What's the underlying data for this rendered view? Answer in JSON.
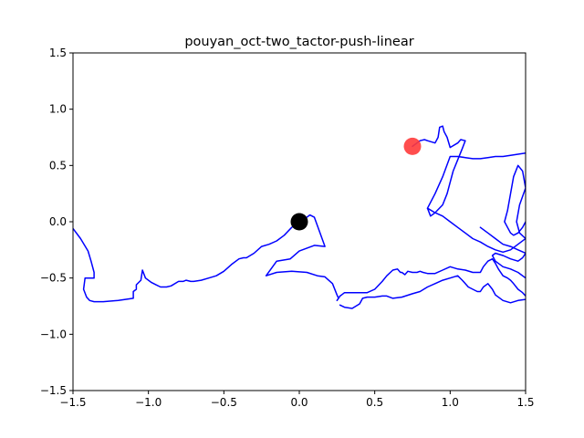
{
  "chart_data": {
    "type": "line",
    "title": "pouyan_oct-two_tactor-push-linear",
    "xlabel": "",
    "ylabel": "",
    "xlim": [
      -1.5,
      1.5
    ],
    "ylim": [
      -1.5,
      1.5
    ],
    "xticks": [
      -1.5,
      -1.0,
      -0.5,
      0.0,
      0.5,
      1.0,
      1.5
    ],
    "xtick_labels": [
      "−1.5",
      "−1.0",
      "−0.5",
      "0.0",
      "0.5",
      "1.0",
      "1.5"
    ],
    "yticks": [
      -1.5,
      -1.0,
      -0.5,
      0.0,
      0.5,
      1.0,
      1.5
    ],
    "ytick_labels": [
      "−1.5",
      "−1.0",
      "−0.5",
      "0.0",
      "0.5",
      "1.0",
      "1.5"
    ],
    "grid": false,
    "legend": "none",
    "trajectory_color": "#0000ff",
    "markers": [
      {
        "x": 0.0,
        "y": 0.0,
        "color": "#000000"
      },
      {
        "x": 0.75,
        "y": 0.67,
        "color": "#ff3b3b"
      }
    ],
    "series": [
      {
        "color": "#0000ff",
        "x": [
          -1.5,
          -1.45,
          -1.4,
          -1.38,
          -1.36,
          -1.36,
          -1.42,
          -1.43,
          -1.41,
          -1.39,
          -1.36,
          -1.3,
          -1.2,
          -1.1,
          -1.1,
          -1.08,
          -1.08,
          -1.05,
          -1.04,
          -1.02,
          -0.98,
          -0.95,
          -0.92,
          -0.88,
          -0.85,
          -0.8,
          -0.77,
          -0.75,
          -0.72,
          -0.7,
          -0.65,
          -0.6,
          -0.55,
          -0.5,
          -0.45,
          -0.4,
          -0.37,
          -0.35,
          -0.3,
          -0.25,
          -0.2,
          -0.15,
          -0.1,
          -0.05,
          0.0,
          0.04,
          0.07,
          0.1,
          0.17,
          0.1,
          0.0,
          -0.06,
          -0.15,
          -0.22,
          -0.15,
          -0.05,
          0.05,
          0.12,
          0.17,
          0.22,
          0.25,
          0.26,
          0.25,
          0.27,
          0.28,
          0.3,
          0.35,
          0.4,
          0.45,
          0.5,
          0.55,
          0.58,
          0.62,
          0.65,
          0.67,
          0.68,
          0.7,
          0.72,
          0.75,
          0.78,
          0.8,
          0.82,
          0.85,
          0.9,
          0.95,
          1.0,
          1.05,
          1.1,
          1.15,
          1.2,
          1.22,
          1.25,
          1.28,
          1.3,
          1.32,
          1.35,
          1.38,
          1.4,
          1.42,
          1.45,
          1.48,
          1.5
        ],
        "y": [
          -0.06,
          -0.15,
          -0.26,
          -0.35,
          -0.45,
          -0.5,
          -0.5,
          -0.6,
          -0.67,
          -0.7,
          -0.71,
          -0.71,
          -0.7,
          -0.68,
          -0.62,
          -0.6,
          -0.56,
          -0.52,
          -0.43,
          -0.5,
          -0.54,
          -0.56,
          -0.58,
          -0.58,
          -0.57,
          -0.53,
          -0.53,
          -0.52,
          -0.53,
          -0.53,
          -0.52,
          -0.5,
          -0.48,
          -0.44,
          -0.38,
          -0.33,
          -0.32,
          -0.32,
          -0.28,
          -0.22,
          -0.2,
          -0.17,
          -0.12,
          -0.05,
          0.0,
          0.03,
          0.06,
          0.04,
          -0.22,
          -0.21,
          -0.26,
          -0.33,
          -0.35,
          -0.48,
          -0.45,
          -0.44,
          -0.45,
          -0.48,
          -0.49,
          -0.55,
          -0.65,
          -0.68,
          -0.7,
          -0.66,
          -0.65,
          -0.63,
          -0.63,
          -0.63,
          -0.63,
          -0.6,
          -0.53,
          -0.48,
          -0.43,
          -0.42,
          -0.45,
          -0.45,
          -0.47,
          -0.44,
          -0.45,
          -0.45,
          -0.44,
          -0.45,
          -0.46,
          -0.46,
          -0.43,
          -0.4,
          -0.42,
          -0.43,
          -0.45,
          -0.45,
          -0.4,
          -0.35,
          -0.33,
          -0.37,
          -0.42,
          -0.48,
          -0.5,
          -0.52,
          -0.55,
          -0.6,
          -0.63,
          -0.66
        ]
      },
      {
        "color": "#0000ff",
        "x": [
          0.27,
          0.3,
          0.35,
          0.4,
          0.42,
          0.45,
          0.5,
          0.55,
          0.58,
          0.62,
          0.68,
          0.75,
          0.8,
          0.85,
          0.9,
          0.95,
          1.0,
          1.05,
          1.08,
          1.1,
          1.12,
          1.15,
          1.18,
          1.2,
          1.22,
          1.25,
          1.28,
          1.3,
          1.35,
          1.4,
          1.45,
          1.5
        ],
        "y": [
          -0.74,
          -0.76,
          -0.77,
          -0.73,
          -0.68,
          -0.67,
          -0.67,
          -0.66,
          -0.66,
          -0.68,
          -0.67,
          -0.64,
          -0.62,
          -0.58,
          -0.55,
          -0.52,
          -0.5,
          -0.48,
          -0.52,
          -0.55,
          -0.58,
          -0.6,
          -0.62,
          -0.62,
          -0.58,
          -0.55,
          -0.6,
          -0.65,
          -0.7,
          -0.72,
          -0.7,
          -0.69
        ]
      },
      {
        "color": "#0000ff",
        "x": [
          0.75,
          0.8,
          0.83,
          0.85,
          0.9,
          0.92,
          0.93,
          0.95,
          0.96,
          0.98,
          1.0,
          1.05,
          1.07,
          1.1,
          1.08,
          1.05,
          1.02,
          1.0,
          0.98,
          0.95,
          0.9,
          0.87,
          0.85,
          0.9,
          0.95,
          1.0,
          1.05,
          1.1,
          1.15,
          1.2,
          1.25,
          1.3,
          1.35,
          1.4,
          1.45,
          1.5
        ],
        "y": [
          0.67,
          0.72,
          0.73,
          0.72,
          0.7,
          0.75,
          0.84,
          0.85,
          0.8,
          0.75,
          0.66,
          0.7,
          0.73,
          0.72,
          0.65,
          0.55,
          0.45,
          0.35,
          0.25,
          0.15,
          0.08,
          0.05,
          0.12,
          0.25,
          0.4,
          0.58,
          0.58,
          0.57,
          0.56,
          0.56,
          0.57,
          0.58,
          0.58,
          0.59,
          0.6,
          0.61
        ]
      },
      {
        "color": "#0000ff",
        "x": [
          0.85,
          0.9,
          0.95,
          1.0,
          1.05,
          1.1,
          1.15,
          1.2,
          1.25,
          1.3,
          1.35,
          1.4,
          1.45,
          1.5,
          1.46,
          1.44,
          1.46,
          1.5,
          1.48,
          1.45,
          1.42,
          1.4,
          1.38,
          1.36,
          1.38,
          1.4,
          1.42,
          1.45,
          1.48,
          1.5
        ],
        "y": [
          0.12,
          0.08,
          0.05,
          0.0,
          -0.05,
          -0.1,
          -0.15,
          -0.18,
          -0.22,
          -0.25,
          -0.27,
          -0.25,
          -0.2,
          -0.15,
          -0.1,
          0.0,
          0.15,
          0.3,
          0.45,
          0.5,
          0.4,
          0.25,
          0.1,
          0.0,
          -0.05,
          -0.1,
          -0.12,
          -0.1,
          -0.05,
          0.0
        ]
      },
      {
        "color": "#0000ff",
        "x": [
          1.2,
          1.25,
          1.3,
          1.35,
          1.4,
          1.45,
          1.5,
          1.48,
          1.45,
          1.4,
          1.35,
          1.3,
          1.28,
          1.3,
          1.35,
          1.4,
          1.45,
          1.5
        ],
        "y": [
          -0.05,
          -0.1,
          -0.15,
          -0.2,
          -0.22,
          -0.25,
          -0.28,
          -0.32,
          -0.35,
          -0.33,
          -0.3,
          -0.28,
          -0.3,
          -0.35,
          -0.4,
          -0.42,
          -0.45,
          -0.5
        ]
      }
    ]
  }
}
